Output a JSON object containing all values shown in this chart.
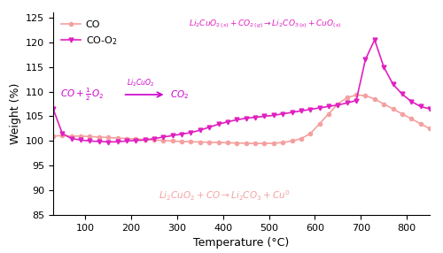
{
  "title": "",
  "xlabel": "Temperature (°C)",
  "ylabel": "Weight (%)",
  "xlim": [
    30,
    850
  ],
  "ylim": [
    85,
    126
  ],
  "yticks": [
    85,
    90,
    95,
    100,
    105,
    110,
    115,
    120,
    125
  ],
  "xticks": [
    100,
    200,
    300,
    400,
    500,
    600,
    700,
    800
  ],
  "co_color": "#F4A0A0",
  "co_o2_color": "#E020C0",
  "co_x": [
    30,
    50,
    70,
    90,
    110,
    130,
    150,
    170,
    190,
    210,
    230,
    250,
    270,
    290,
    310,
    330,
    350,
    370,
    390,
    410,
    430,
    450,
    470,
    490,
    510,
    530,
    550,
    570,
    590,
    610,
    630,
    650,
    670,
    690,
    710,
    730,
    750,
    770,
    790,
    810,
    830,
    850
  ],
  "co_y": [
    101.0,
    101.1,
    101.0,
    101.0,
    100.9,
    100.8,
    100.7,
    100.6,
    100.5,
    100.4,
    100.3,
    100.2,
    100.1,
    100.0,
    99.9,
    99.85,
    99.8,
    99.75,
    99.7,
    99.65,
    99.6,
    99.55,
    99.5,
    99.5,
    99.55,
    99.7,
    100.0,
    100.5,
    101.5,
    103.5,
    105.5,
    107.5,
    108.8,
    109.3,
    109.2,
    108.5,
    107.5,
    106.5,
    105.5,
    104.5,
    103.5,
    102.5
  ],
  "co_o2_x": [
    30,
    50,
    70,
    90,
    110,
    130,
    150,
    170,
    190,
    210,
    230,
    250,
    270,
    290,
    310,
    330,
    350,
    370,
    390,
    410,
    430,
    450,
    470,
    490,
    510,
    530,
    550,
    570,
    590,
    610,
    630,
    650,
    670,
    690,
    710,
    730,
    750,
    770,
    790,
    810,
    830,
    850
  ],
  "co_o2_y": [
    106.5,
    101.5,
    100.5,
    100.2,
    100.0,
    99.9,
    99.8,
    99.85,
    100.0,
    100.1,
    100.2,
    100.5,
    100.8,
    101.1,
    101.4,
    101.7,
    102.2,
    102.8,
    103.4,
    103.9,
    104.3,
    104.6,
    104.8,
    105.0,
    105.2,
    105.5,
    105.8,
    106.1,
    106.4,
    106.7,
    107.0,
    107.3,
    107.7,
    108.2,
    116.5,
    120.5,
    115.0,
    111.5,
    109.5,
    108.0,
    107.0,
    106.5
  ],
  "legend_co": "CO",
  "legend_co_o2": "CO-O$_2$",
  "annotation_top_color": "#E020C0",
  "annotation_bottom_color": "#F4A0A0",
  "annotation_eq_color": "#CC00CC",
  "background_color": "#ffffff"
}
